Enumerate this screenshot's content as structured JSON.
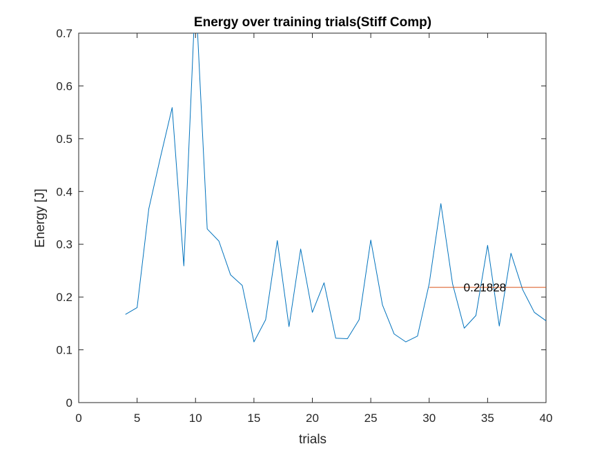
{
  "chart_data": {
    "type": "line",
    "title": "Energy over training trials(Stiff Comp)",
    "xlabel": "trials",
    "ylabel": "Energy [J]",
    "xlim": [
      0,
      40
    ],
    "ylim": [
      0,
      0.7
    ],
    "xticks": [
      "0",
      "5",
      "10",
      "15",
      "20",
      "25",
      "30",
      "35",
      "40"
    ],
    "yticks": [
      "0",
      "0.1",
      "0.2",
      "0.3",
      "0.4",
      "0.5",
      "0.6",
      "0.7"
    ],
    "grid": false,
    "colors": {
      "series": "#0072bd",
      "reference": "#d95319",
      "axes": "#262626"
    },
    "series": [
      {
        "x": [
          4,
          5,
          6,
          7,
          8,
          9,
          10,
          11,
          12,
          13,
          14,
          15,
          16,
          17,
          18,
          19,
          20,
          21,
          22,
          23,
          24,
          25,
          26,
          27,
          28,
          29,
          30,
          31,
          32,
          33,
          34,
          35,
          36,
          37,
          38,
          39,
          40
        ],
        "values": [
          0.167,
          0.18,
          0.367,
          0.465,
          0.559,
          0.259,
          0.78,
          0.329,
          0.306,
          0.242,
          0.222,
          0.115,
          0.157,
          0.307,
          0.144,
          0.291,
          0.171,
          0.227,
          0.122,
          0.121,
          0.157,
          0.308,
          0.185,
          0.13,
          0.115,
          0.126,
          0.225,
          0.377,
          0.225,
          0.141,
          0.165,
          0.298,
          0.145,
          0.283,
          0.214,
          0.171,
          0.155
        ]
      }
    ],
    "reference_line": {
      "x": [
        30,
        40
      ],
      "y": 0.21828,
      "label": "0.21828",
      "label_x": 32.95
    }
  }
}
